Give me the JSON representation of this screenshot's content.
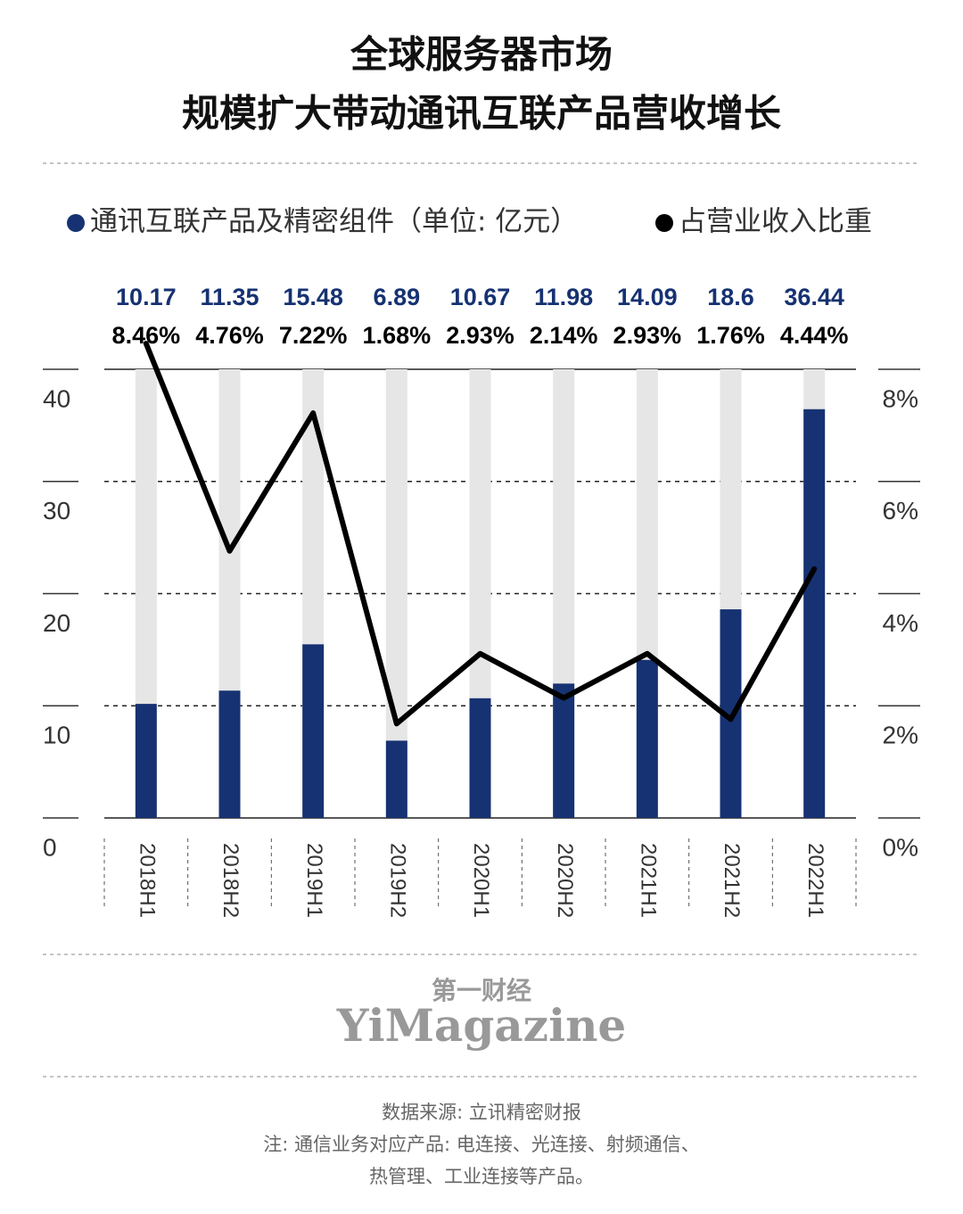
{
  "header": {
    "title_lines": [
      "全球服务器市场",
      "规模扩大带动通讯互联产品营收增长"
    ]
  },
  "chart_data": {
    "type": "bar_line",
    "categories": [
      "2018H1",
      "2018H2",
      "2019H1",
      "2019H2",
      "2020H1",
      "2020H2",
      "2021H1",
      "2021H2",
      "2022H1"
    ],
    "series": [
      {
        "name": "通讯互联产品及精密组件（单位: 亿元）",
        "color": "#163272",
        "type": "bar",
        "values": [
          10.17,
          11.35,
          15.48,
          6.89,
          10.67,
          11.98,
          14.09,
          18.6,
          36.44
        ]
      },
      {
        "name": "占营业收入比重",
        "color": "#000000",
        "type": "line",
        "axis": "y2",
        "values": [
          8.46,
          4.76,
          7.22,
          1.68,
          2.93,
          2.14,
          2.93,
          1.76,
          4.44
        ],
        "value_labels": [
          "8.46%",
          "4.76%",
          "7.22%",
          "1.68%",
          "2.93%",
          "2.14%",
          "2.93%",
          "1.76%",
          "4.44%"
        ]
      }
    ],
    "ylim": [
      0,
      40
    ],
    "yticks": [
      0,
      10,
      20,
      30,
      40
    ],
    "y2lim": [
      0,
      8
    ],
    "y2ticks": [
      {
        "value": 0,
        "label": "0%"
      },
      {
        "value": 2,
        "label": "2%"
      },
      {
        "value": 4,
        "label": "4%"
      },
      {
        "value": 6,
        "label": "6%"
      },
      {
        "value": 8,
        "label": "8%"
      }
    ],
    "grid": true
  },
  "footer": {
    "brand_cn": "第一财经",
    "brand_en": "YiMagazine",
    "notes": [
      "数据来源: 立讯精密财报",
      "注: 通信业务对应产品: 电连接、光连接、射频通信、",
      "热管理、工业连接等产品。"
    ]
  }
}
